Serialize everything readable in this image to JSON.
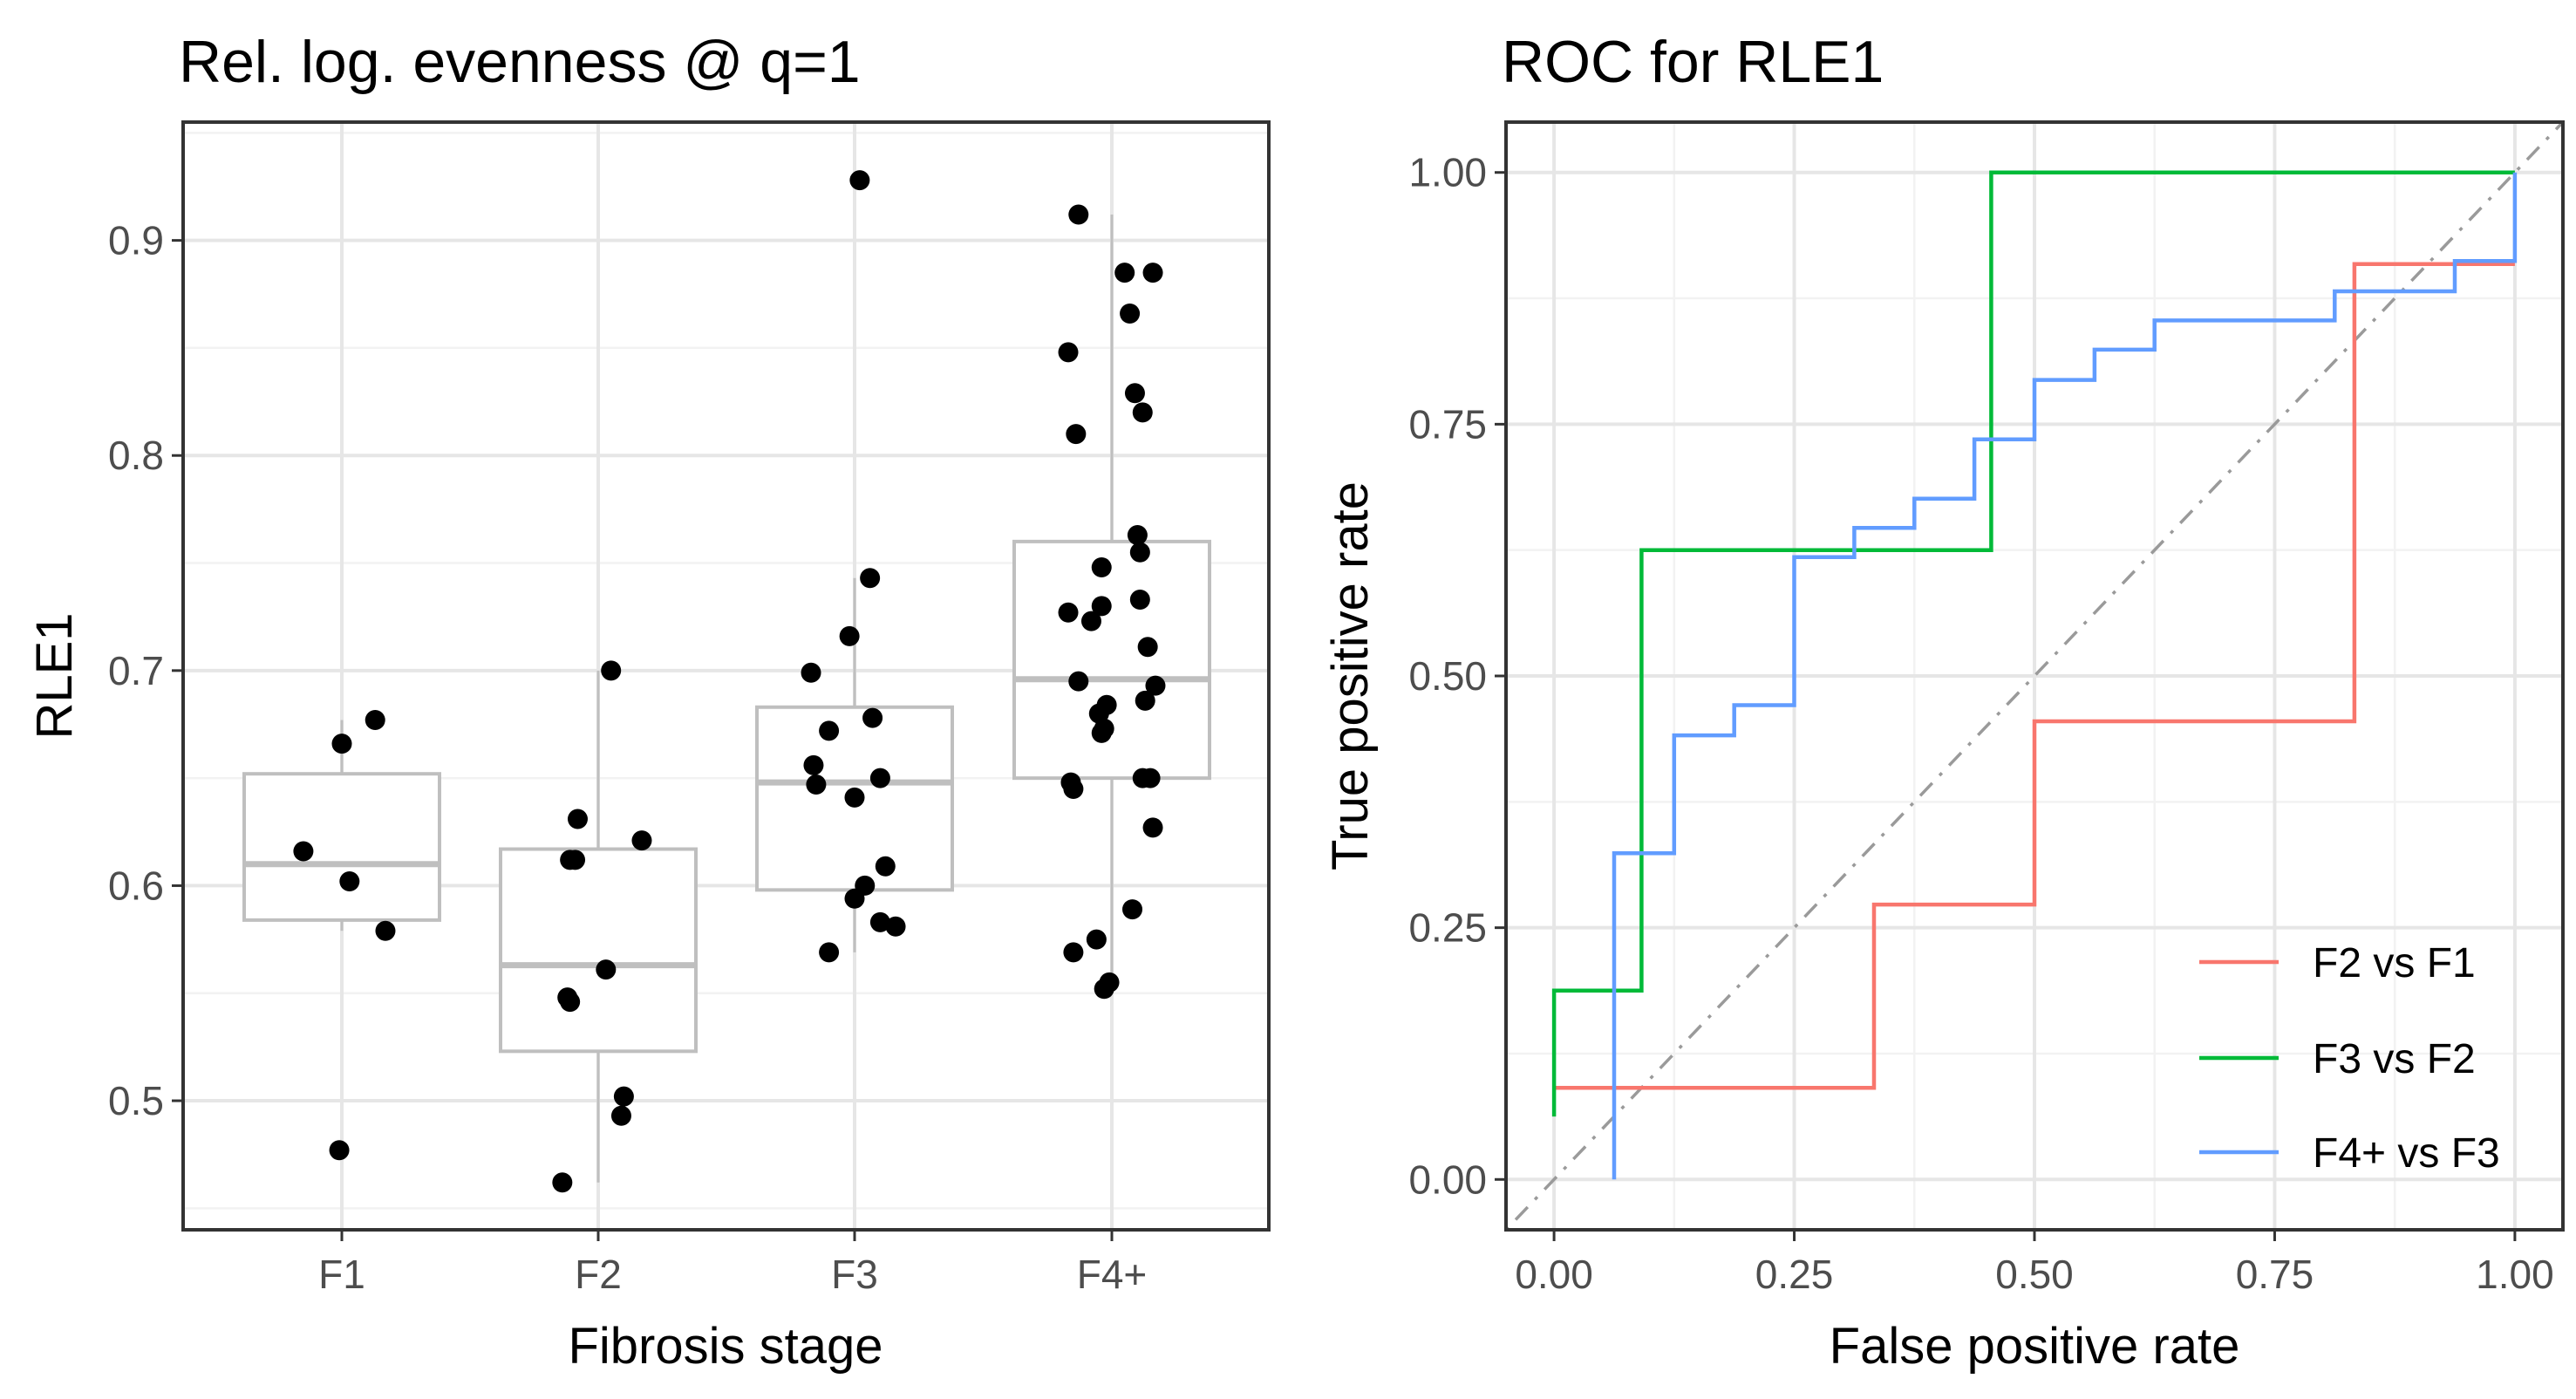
{
  "chart_data": [
    {
      "type": "box",
      "title": "Rel. log. evenness @ q=1",
      "xlabel": "Fibrosis stage",
      "ylabel": "RLE1",
      "categories": [
        "F1",
        "F2",
        "F3",
        "F4+"
      ],
      "ylim": [
        0.44,
        0.955
      ],
      "yticks": [
        0.5,
        0.6,
        0.7,
        0.8,
        0.9
      ],
      "ytick_labels": [
        "0.5",
        "0.6",
        "0.7",
        "0.8",
        "0.9"
      ],
      "grid": true,
      "boxes": [
        {
          "category": "F1",
          "q1": 0.584,
          "median": 0.61,
          "q3": 0.652,
          "whisker_low": 0.579,
          "whisker_high": 0.677
        },
        {
          "category": "F2",
          "q1": 0.523,
          "median": 0.563,
          "q3": 0.617,
          "whisker_low": 0.462,
          "whisker_high": 0.7
        },
        {
          "category": "F3",
          "q1": 0.598,
          "median": 0.648,
          "q3": 0.683,
          "whisker_low": 0.569,
          "whisker_high": 0.743
        },
        {
          "category": "F4+",
          "q1": 0.65,
          "median": 0.696,
          "q3": 0.76,
          "whisker_low": 0.552,
          "whisker_high": 0.912
        }
      ],
      "points": [
        {
          "category": "F1",
          "jitter": -0.15,
          "value": 0.616
        },
        {
          "category": "F1",
          "jitter": 0.0,
          "value": 0.666
        },
        {
          "category": "F1",
          "jitter": 0.13,
          "value": 0.677
        },
        {
          "category": "F1",
          "jitter": 0.03,
          "value": 0.602
        },
        {
          "category": "F1",
          "jitter": 0.17,
          "value": 0.579
        },
        {
          "category": "F1",
          "jitter": -0.01,
          "value": 0.477
        },
        {
          "category": "F2",
          "jitter": 0.05,
          "value": 0.7
        },
        {
          "category": "F2",
          "jitter": -0.08,
          "value": 0.631
        },
        {
          "category": "F2",
          "jitter": -0.11,
          "value": 0.612
        },
        {
          "category": "F2",
          "jitter": -0.09,
          "value": 0.612
        },
        {
          "category": "F2",
          "jitter": 0.17,
          "value": 0.621
        },
        {
          "category": "F2",
          "jitter": 0.03,
          "value": 0.561
        },
        {
          "category": "F2",
          "jitter": -0.12,
          "value": 0.548
        },
        {
          "category": "F2",
          "jitter": -0.11,
          "value": 0.546
        },
        {
          "category": "F2",
          "jitter": 0.1,
          "value": 0.502
        },
        {
          "category": "F2",
          "jitter": 0.09,
          "value": 0.493
        },
        {
          "category": "F2",
          "jitter": -0.14,
          "value": 0.462
        },
        {
          "category": "F3",
          "jitter": 0.02,
          "value": 0.928
        },
        {
          "category": "F3",
          "jitter": 0.06,
          "value": 0.743
        },
        {
          "category": "F3",
          "jitter": -0.02,
          "value": 0.716
        },
        {
          "category": "F3",
          "jitter": -0.17,
          "value": 0.699
        },
        {
          "category": "F3",
          "jitter": 0.07,
          "value": 0.678
        },
        {
          "category": "F3",
          "jitter": -0.1,
          "value": 0.672
        },
        {
          "category": "F3",
          "jitter": -0.16,
          "value": 0.656
        },
        {
          "category": "F3",
          "jitter": -0.15,
          "value": 0.647
        },
        {
          "category": "F3",
          "jitter": 0.1,
          "value": 0.65
        },
        {
          "category": "F3",
          "jitter": 0.0,
          "value": 0.641
        },
        {
          "category": "F3",
          "jitter": 0.12,
          "value": 0.609
        },
        {
          "category": "F3",
          "jitter": 0.04,
          "value": 0.6
        },
        {
          "category": "F3",
          "jitter": 0.0,
          "value": 0.594
        },
        {
          "category": "F3",
          "jitter": 0.1,
          "value": 0.583
        },
        {
          "category": "F3",
          "jitter": 0.16,
          "value": 0.581
        },
        {
          "category": "F3",
          "jitter": -0.1,
          "value": 0.569
        },
        {
          "category": "F4+",
          "jitter": -0.13,
          "value": 0.912
        },
        {
          "category": "F4+",
          "jitter": 0.05,
          "value": 0.885
        },
        {
          "category": "F4+",
          "jitter": 0.16,
          "value": 0.885
        },
        {
          "category": "F4+",
          "jitter": 0.07,
          "value": 0.866
        },
        {
          "category": "F4+",
          "jitter": -0.17,
          "value": 0.848
        },
        {
          "category": "F4+",
          "jitter": 0.09,
          "value": 0.829
        },
        {
          "category": "F4+",
          "jitter": 0.12,
          "value": 0.82
        },
        {
          "category": "F4+",
          "jitter": -0.14,
          "value": 0.81
        },
        {
          "category": "F4+",
          "jitter": 0.1,
          "value": 0.763
        },
        {
          "category": "F4+",
          "jitter": 0.11,
          "value": 0.755
        },
        {
          "category": "F4+",
          "jitter": -0.04,
          "value": 0.748
        },
        {
          "category": "F4+",
          "jitter": 0.11,
          "value": 0.733
        },
        {
          "category": "F4+",
          "jitter": -0.04,
          "value": 0.73
        },
        {
          "category": "F4+",
          "jitter": -0.17,
          "value": 0.727
        },
        {
          "category": "F4+",
          "jitter": -0.08,
          "value": 0.723
        },
        {
          "category": "F4+",
          "jitter": 0.14,
          "value": 0.711
        },
        {
          "category": "F4+",
          "jitter": -0.13,
          "value": 0.695
        },
        {
          "category": "F4+",
          "jitter": 0.17,
          "value": 0.693
        },
        {
          "category": "F4+",
          "jitter": 0.13,
          "value": 0.686
        },
        {
          "category": "F4+",
          "jitter": -0.02,
          "value": 0.684
        },
        {
          "category": "F4+",
          "jitter": -0.05,
          "value": 0.68
        },
        {
          "category": "F4+",
          "jitter": -0.03,
          "value": 0.673
        },
        {
          "category": "F4+",
          "jitter": -0.04,
          "value": 0.671
        },
        {
          "category": "F4+",
          "jitter": -0.16,
          "value": 0.648
        },
        {
          "category": "F4+",
          "jitter": -0.15,
          "value": 0.645
        },
        {
          "category": "F4+",
          "jitter": 0.12,
          "value": 0.65
        },
        {
          "category": "F4+",
          "jitter": 0.15,
          "value": 0.65
        },
        {
          "category": "F4+",
          "jitter": 0.16,
          "value": 0.627
        },
        {
          "category": "F4+",
          "jitter": 0.08,
          "value": 0.589
        },
        {
          "category": "F4+",
          "jitter": -0.06,
          "value": 0.575
        },
        {
          "category": "F4+",
          "jitter": -0.15,
          "value": 0.569
        },
        {
          "category": "F4+",
          "jitter": -0.01,
          "value": 0.555
        },
        {
          "category": "F4+",
          "jitter": -0.03,
          "value": 0.552
        }
      ]
    },
    {
      "type": "line",
      "title": "ROC for RLE1",
      "xlabel": "False positive rate",
      "ylabel": "True positive rate",
      "xlim": [
        -0.05,
        1.05
      ],
      "ylim": [
        -0.05,
        1.05
      ],
      "xticks": [
        0.0,
        0.25,
        0.5,
        0.75,
        1.0
      ],
      "xtick_labels": [
        "0.00",
        "0.25",
        "0.50",
        "0.75",
        "1.00"
      ],
      "yticks": [
        0.0,
        0.25,
        0.5,
        0.75,
        1.0
      ],
      "ytick_labels": [
        "0.00",
        "0.25",
        "0.50",
        "0.75",
        "1.00"
      ],
      "grid": true,
      "legend_position": "bottom-right",
      "diagonal_reference": true,
      "series": [
        {
          "name": "F2 vs F1",
          "color": "#F8766D",
          "x": [
            0.0,
            0.333,
            0.333,
            0.5,
            0.5,
            0.833,
            0.833,
            1.0
          ],
          "y": [
            0.091,
            0.091,
            0.273,
            0.273,
            0.455,
            0.455,
            0.909,
            0.909
          ]
        },
        {
          "name": "F3 vs F2",
          "color": "#00BA38",
          "x": [
            0.0,
            0.0,
            0.091,
            0.091,
            0.455,
            0.455,
            1.0
          ],
          "y": [
            0.0625,
            0.1875,
            0.1875,
            0.625,
            0.625,
            1.0,
            1.0
          ]
        },
        {
          "name": "F4+ vs F3",
          "color": "#619CFF",
          "x": [
            0.0625,
            0.0625,
            0.125,
            0.125,
            0.1875,
            0.1875,
            0.25,
            0.25,
            0.3125,
            0.3125,
            0.375,
            0.375,
            0.4375,
            0.4375,
            0.5,
            0.5,
            0.5625,
            0.5625,
            0.625,
            0.625,
            0.8125,
            0.8125,
            0.9375,
            0.9375,
            1.0,
            1.0
          ],
          "y": [
            0.0,
            0.324,
            0.324,
            0.441,
            0.441,
            0.471,
            0.471,
            0.618,
            0.618,
            0.647,
            0.647,
            0.676,
            0.676,
            0.735,
            0.735,
            0.794,
            0.794,
            0.824,
            0.824,
            0.853,
            0.853,
            0.882,
            0.882,
            0.912,
            0.912,
            1.0
          ]
        }
      ]
    }
  ]
}
